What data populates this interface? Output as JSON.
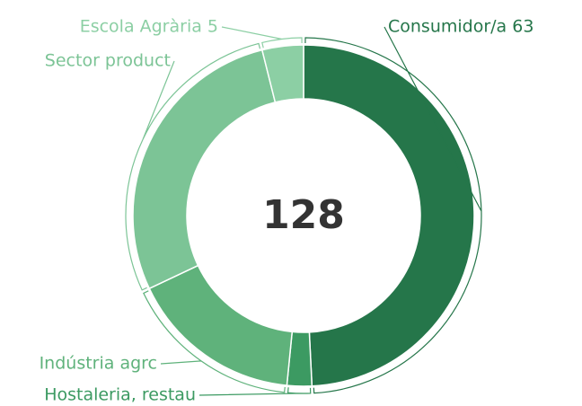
{
  "chart_data": {
    "type": "donut",
    "total": 128,
    "categories": [
      "Consumidor/a 63",
      "Hostaleria, restau",
      "Indústria agrc",
      "Sector product",
      "Escola Agrària 5"
    ],
    "values": [
      63,
      3,
      21,
      36,
      5
    ],
    "colors": [
      "#25764a",
      "#3c9a62",
      "#5fb27b",
      "#7cc496",
      "#8ccfa4"
    ]
  }
}
